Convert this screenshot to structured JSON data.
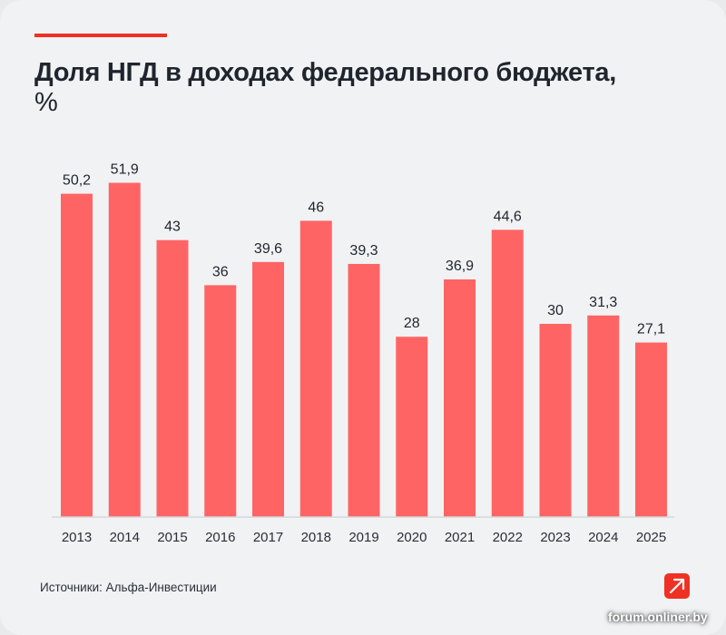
{
  "header": {
    "title": "Доля НГД в доходах федерального бюджета,",
    "unit": "%"
  },
  "colors": {
    "accent": "#ef3124",
    "bar": "#ff6464",
    "text": "#1f252d",
    "background": "#f1f2f4"
  },
  "chart_data": {
    "type": "bar",
    "title": "Доля НГД в доходах федерального бюджета, %",
    "xlabel": "",
    "ylabel": "",
    "ylim": [
      0,
      55
    ],
    "grid": false,
    "legend": "none",
    "categories": [
      "2013",
      "2014",
      "2015",
      "2016",
      "2017",
      "2018",
      "2019",
      "2020",
      "2021",
      "2022",
      "2023",
      "2024",
      "2025"
    ],
    "values": [
      50.2,
      51.9,
      43,
      36,
      39.6,
      46,
      39.3,
      28,
      36.9,
      44.6,
      30,
      31.3,
      27.1
    ],
    "data_labels": [
      "50,2",
      "51,9",
      "43",
      "36",
      "39,6",
      "46",
      "39,3",
      "28",
      "36,9",
      "44,6",
      "30",
      "31,3",
      "27,1"
    ]
  },
  "footer": {
    "source": "Источники: Альфа-Инвестиции",
    "logo_icon": "alfa-arrow-icon",
    "watermark": "forum.onliner.by"
  }
}
